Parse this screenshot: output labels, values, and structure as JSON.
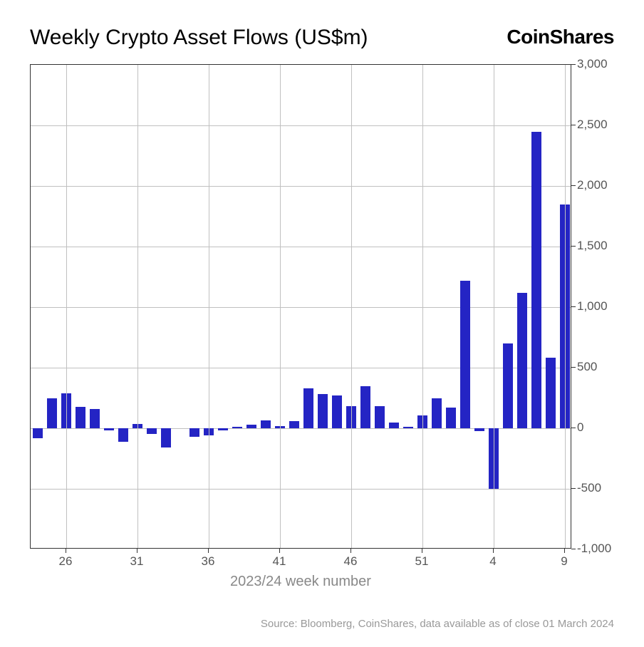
{
  "title": "Weekly Crypto Asset Flows (US$m)",
  "brand": "CoinShares",
  "chart": {
    "type": "bar",
    "bar_color": "#2424c4",
    "background_color": "#ffffff",
    "grid_color": "#c0c0c0",
    "border_color": "#333333",
    "y": {
      "min": -1000,
      "max": 3000,
      "tick_step": 500,
      "ticks": [
        -1000,
        -500,
        0,
        500,
        1000,
        1500,
        2000,
        2500,
        3000
      ],
      "tick_labels": [
        "-1,000",
        "-500",
        "0",
        "500",
        "1,000",
        "1,500",
        "2,000",
        "2,500",
        "3,000"
      ],
      "label_color": "#555555",
      "label_fontsize": 17
    },
    "x": {
      "title": "2023/24 week number",
      "title_color": "#888888",
      "title_fontsize": 20,
      "tick_positions": [
        2,
        7,
        12,
        17,
        22,
        27,
        32,
        37
      ],
      "tick_labels": [
        "26",
        "31",
        "36",
        "41",
        "46",
        "51",
        "4",
        "9"
      ],
      "label_color": "#555555",
      "label_fontsize": 17
    },
    "bar_width_ratio": 0.72,
    "values": [
      -80,
      250,
      290,
      175,
      160,
      -20,
      -110,
      35,
      -45,
      -160,
      0,
      -70,
      -60,
      -15,
      10,
      30,
      65,
      18,
      60,
      330,
      280,
      270,
      185,
      350,
      180,
      45,
      12,
      105,
      250,
      170,
      1220,
      -25,
      -500,
      700,
      1115,
      2450,
      585,
      1850
    ]
  },
  "source": "Source: Bloomberg, CoinShares, data available as of close 01 March 2024",
  "source_color": "#999999",
  "source_fontsize": 15
}
